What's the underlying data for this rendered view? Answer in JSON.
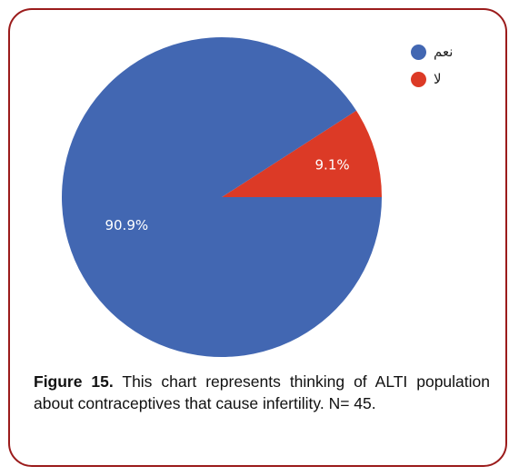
{
  "chart_data": {
    "type": "pie",
    "title": "",
    "slices": [
      {
        "label": "نعم",
        "value": 90.9,
        "display": "90.9%",
        "color": "#4267b2"
      },
      {
        "label": "لا",
        "value": 9.1,
        "display": "9.1%",
        "color": "#dc3a26"
      }
    ],
    "legend_position": "top-right"
  },
  "caption": {
    "figure_label": "Figure 15.",
    "text": "This chart represents thinking of ALTI population about contraceptives that cause infertility. N= 45."
  }
}
